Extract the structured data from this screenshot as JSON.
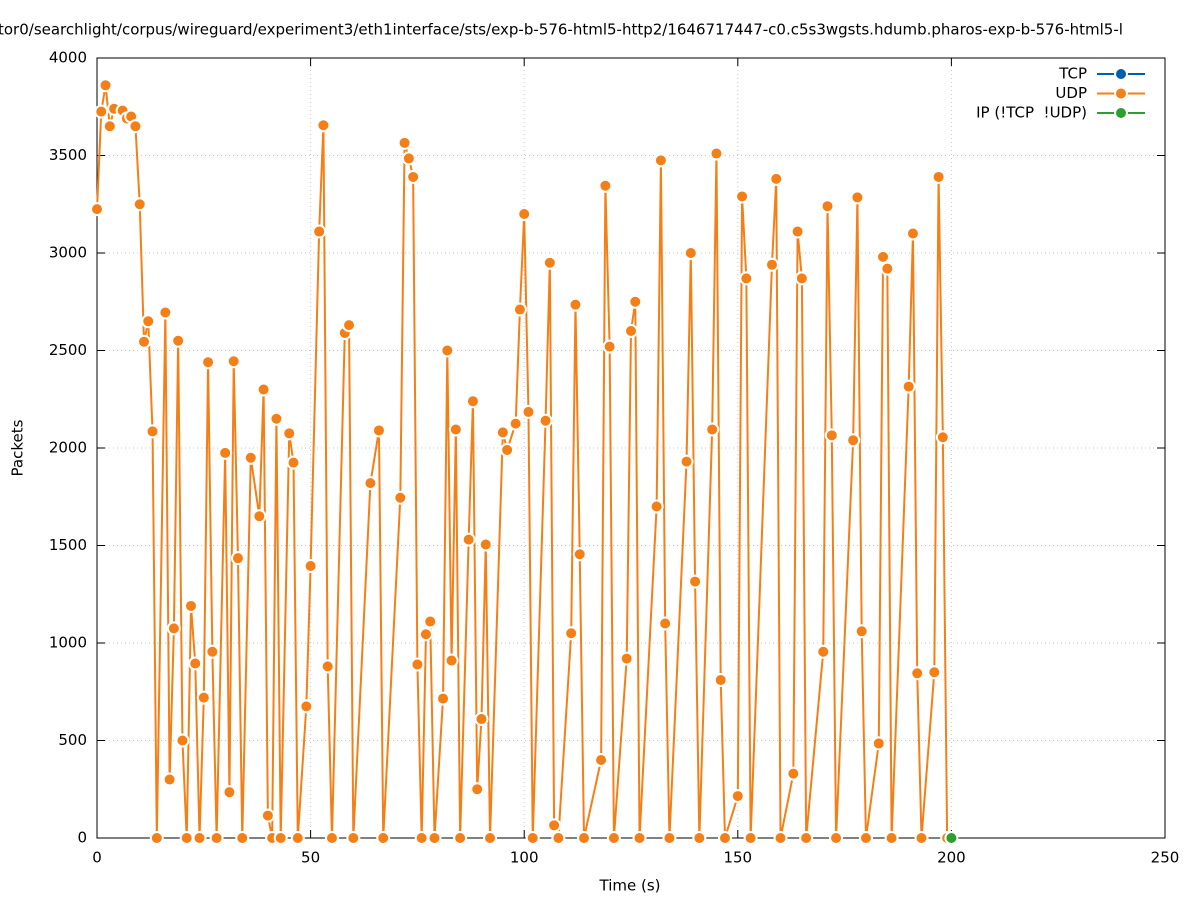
{
  "chart_data": {
    "type": "line",
    "title": "tor0/searchlight/corpus/wireguard/experiment3/eth1interface/sts/exp-b-576-html5-http2/1646717447-c0.c5s3wgsts.hdumb.pharos-exp-b-576-html5-l",
    "x_label": "Time (s)",
    "y_label": "Packets",
    "xlim": [
      0,
      250
    ],
    "xticks": [
      0,
      50,
      100,
      150,
      200,
      250
    ],
    "ylim": [
      0,
      4000
    ],
    "yticks": [
      0,
      500,
      1000,
      1500,
      2000,
      2500,
      3000,
      3500,
      4000
    ],
    "grid": true,
    "legend": "upper right",
    "series": [
      {
        "name": "TCP",
        "color": "#0060ad",
        "x": [],
        "values": []
      },
      {
        "name": "UDP",
        "color": "#f57f17",
        "x": [
          0,
          1,
          2,
          3,
          4,
          6,
          7,
          8,
          9,
          10,
          11,
          12,
          13,
          14,
          16,
          17,
          18,
          19,
          20,
          21,
          22,
          23,
          24,
          25,
          26,
          27,
          28,
          30,
          31,
          32,
          33,
          34,
          36,
          38,
          39,
          40,
          41,
          42,
          43,
          45,
          46,
          47,
          49,
          50,
          52,
          53,
          54,
          55,
          58,
          59,
          60,
          64,
          66,
          67,
          71,
          72,
          73,
          74,
          75,
          76,
          77,
          78,
          79,
          81,
          82,
          83,
          84,
          85,
          87,
          88,
          89,
          90,
          91,
          92,
          95,
          96,
          98,
          99,
          100,
          101,
          102,
          105,
          106,
          107,
          108,
          111,
          112,
          113,
          114,
          118,
          119,
          120,
          121,
          124,
          125,
          126,
          127,
          131,
          132,
          133,
          134,
          138,
          139,
          140,
          141,
          144,
          145,
          146,
          147,
          150,
          151,
          152,
          153,
          158,
          159,
          160,
          163,
          164,
          165,
          166,
          170,
          171,
          172,
          173,
          177,
          178,
          179,
          180,
          183,
          184,
          185,
          186,
          190,
          191,
          192,
          193,
          196,
          197,
          198,
          199
        ],
        "values": [
          3225,
          3725,
          3860,
          3650,
          3740,
          3730,
          3690,
          3700,
          3650,
          3250,
          2545,
          2650,
          2085,
          0,
          2695,
          300,
          1075,
          2550,
          500,
          0,
          1190,
          895,
          0,
          720,
          2440,
          955,
          0,
          1975,
          235,
          2445,
          1435,
          0,
          1950,
          1650,
          2300,
          115,
          0,
          2150,
          0,
          2075,
          1925,
          0,
          675,
          1395,
          3110,
          3655,
          880,
          0,
          2590,
          2630,
          0,
          1820,
          2090,
          0,
          1745,
          3565,
          3485,
          3390,
          890,
          0,
          1045,
          1110,
          0,
          715,
          2500,
          910,
          2095,
          0,
          1530,
          2240,
          250,
          610,
          1505,
          0,
          2080,
          1990,
          2125,
          2710,
          3200,
          2185,
          0,
          2140,
          2950,
          65,
          0,
          1050,
          2735,
          1455,
          0,
          400,
          3345,
          2520,
          0,
          920,
          2600,
          2750,
          0,
          1700,
          3475,
          1100,
          0,
          1930,
          3000,
          1315,
          0,
          2095,
          3510,
          810,
          0,
          215,
          3290,
          2870,
          0,
          2940,
          3380,
          0,
          330,
          3110,
          2870,
          0,
          955,
          3240,
          2065,
          0,
          2040,
          3285,
          1060,
          0,
          485,
          2980,
          2920,
          0,
          2315,
          3100,
          845,
          0,
          850,
          3390,
          2055,
          0
        ]
      },
      {
        "name": "IP (!TCP  !UDP)",
        "color": "#2ca02c",
        "x": [
          200
        ],
        "values": [
          0
        ]
      }
    ]
  }
}
